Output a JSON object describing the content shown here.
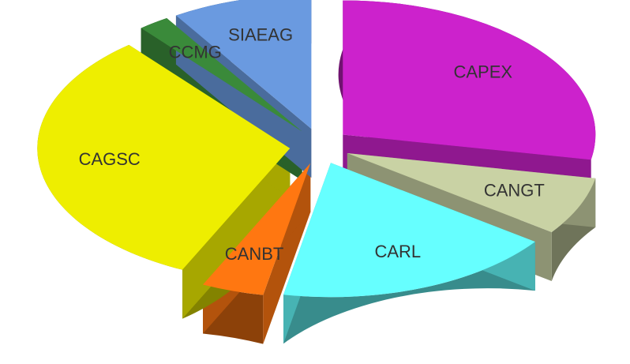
{
  "chart_data": {
    "type": "pie",
    "categories": [
      "CAPEX",
      "CANGT",
      "CARL",
      "CANBT",
      "CAGSC",
      "CCMG",
      "SIAEAG"
    ],
    "values": [
      28,
      7,
      18,
      4,
      32,
      2,
      9
    ],
    "colors": [
      "#cc22cc",
      "#c9d2a4",
      "#66ffff",
      "#ff7711",
      "#eeee00",
      "#3a8a3a",
      "#6a9ae0"
    ]
  }
}
